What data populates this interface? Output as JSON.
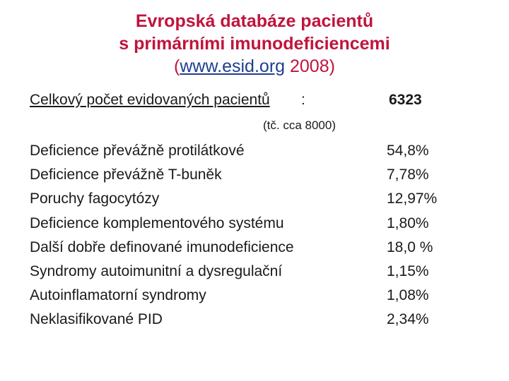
{
  "title": {
    "line1": "Evropská databáze pacientů",
    "line2": "s primárními imunodeficiencemi",
    "line3_open": "(",
    "line3_url": "www.esid.org",
    "line3_rest": " 2008)"
  },
  "total": {
    "label": "Celkový počet evidovaných pacientů",
    "colon": ":",
    "value": "6323",
    "note": "(tč. cca 8000)"
  },
  "rows": [
    {
      "label": "Deficience převážně protilátkové",
      "value": "54,8%"
    },
    {
      "label": "Deficience převážně T-buněk",
      "value": "7,78%"
    },
    {
      "label": "Poruchy fagocytózy",
      "value": "12,97%"
    },
    {
      "label": "Deficience komplementového systému",
      "value": "1,80%"
    },
    {
      "label": "Další dobře definované imunodeficience",
      "value": "18,0 %"
    },
    {
      "label": "Syndromy autoimunitní a dysregulační",
      "value": "1,15%"
    },
    {
      "label": "Autoinflamatorní syndromy",
      "value": "1,08%"
    },
    {
      "label": "Neklasifikované PID",
      "value": "2,34%"
    }
  ]
}
